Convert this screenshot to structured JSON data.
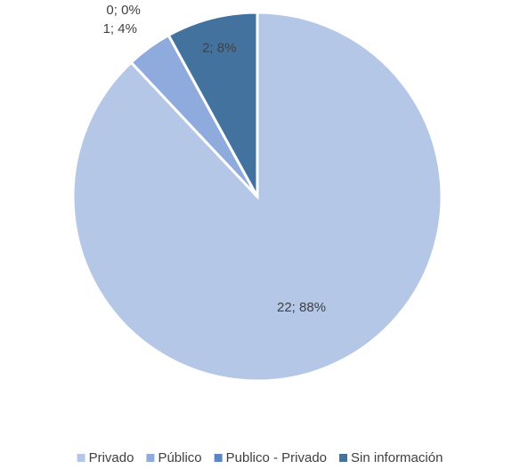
{
  "chart_data": {
    "type": "pie",
    "categories": [
      "Privado",
      "Público",
      "Publico - Privado",
      "Sin información"
    ],
    "values": [
      22,
      1,
      0,
      2
    ],
    "value_labels": [
      "22; 88%",
      "1; 4%",
      "0; 0%",
      "2; 8%"
    ],
    "colors": [
      "#b4c7e7",
      "#8faadc",
      "#5b87c4",
      "#44729f"
    ],
    "legend": "bottom"
  }
}
